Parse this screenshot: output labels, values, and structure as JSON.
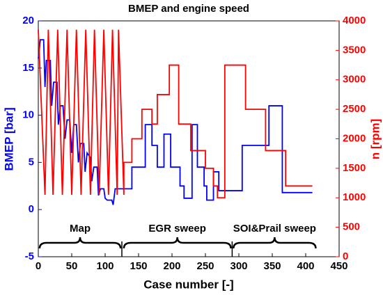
{
  "chart_data": {
    "type": "line",
    "title": "BMEP and engine speed",
    "xlabel": "Case number [-]",
    "ylabel": "BMEP [bar]",
    "y2label": "n [rpm]",
    "xlim": [
      0,
      450
    ],
    "xticks": [
      0,
      50,
      100,
      150,
      200,
      250,
      300,
      350,
      400,
      450
    ],
    "ylim": [
      -5,
      20
    ],
    "yticks": [
      -5,
      0,
      5,
      10,
      15,
      20
    ],
    "y2lim": [
      0,
      4000
    ],
    "y2ticks": [
      0,
      500,
      1000,
      1500,
      2000,
      2500,
      3000,
      3500,
      4000
    ],
    "annotations": [
      "Map",
      "EGR sweep",
      "SOI&Prail sweep"
    ],
    "series": [
      {
        "name": "BMEP",
        "color": "#0000ff",
        "axis": "y",
        "x": [
          0,
          3,
          8,
          10,
          12,
          18,
          20,
          23,
          28,
          30,
          33,
          37,
          40,
          43,
          47,
          50,
          53,
          57,
          60,
          63,
          68,
          70,
          73,
          78,
          80,
          83,
          88,
          90,
          93,
          98,
          100,
          103,
          110,
          112,
          115,
          140,
          140,
          160,
          160,
          170,
          170,
          178,
          178,
          188,
          188,
          198,
          198,
          212,
          212,
          218,
          218,
          230,
          230,
          238,
          238,
          248,
          248,
          252,
          252,
          262,
          262,
          270,
          270,
          305,
          305,
          345,
          345,
          365,
          365,
          410
        ],
        "values": [
          16,
          18,
          18,
          13,
          15.8,
          15.8,
          11,
          13.5,
          13.5,
          9,
          11,
          11,
          7.5,
          9.5,
          9.5,
          6,
          9,
          9,
          5,
          7,
          7,
          4,
          6,
          5.5,
          3,
          4.5,
          4.5,
          1.5,
          2.2,
          2.2,
          1.2,
          1,
          1,
          0.5,
          2.2,
          2.2,
          4.5,
          4.5,
          9,
          9,
          6.8,
          6.8,
          4.5,
          4.5,
          8,
          8,
          4.5,
          4.5,
          2.5,
          2.5,
          1.2,
          1.2,
          9,
          9,
          4.5,
          4.5,
          2.5,
          2.5,
          1,
          1,
          4,
          4,
          2,
          2,
          6.8,
          6.8,
          11,
          11,
          1.8,
          1.8
        ]
      },
      {
        "name": "n",
        "color": "#ff0000",
        "axis": "y2",
        "x": [
          0,
          10,
          15,
          22,
          29,
          36,
          43,
          50,
          57,
          64,
          71,
          78,
          84,
          91,
          98,
          105,
          111,
          118,
          120,
          128,
          128,
          140,
          140,
          155,
          155,
          170,
          170,
          178,
          178,
          196,
          196,
          210,
          210,
          228,
          228,
          250,
          250,
          262,
          262,
          268,
          268,
          279,
          279,
          310,
          310,
          340,
          340,
          370,
          370,
          410
        ],
        "values": [
          3850,
          1050,
          3850,
          1050,
          3850,
          1050,
          3850,
          1050,
          3850,
          1050,
          3850,
          1050,
          3850,
          1050,
          3850,
          1050,
          3850,
          1050,
          3850,
          1050,
          1600,
          1600,
          2000,
          2000,
          2500,
          2500,
          2250,
          2250,
          2750,
          2750,
          3250,
          3250,
          2250,
          2250,
          1800,
          1800,
          1500,
          1500,
          1200,
          1200,
          1000,
          1000,
          3250,
          3250,
          2500,
          2500,
          1800,
          1800,
          1200,
          1200
        ]
      }
    ]
  }
}
